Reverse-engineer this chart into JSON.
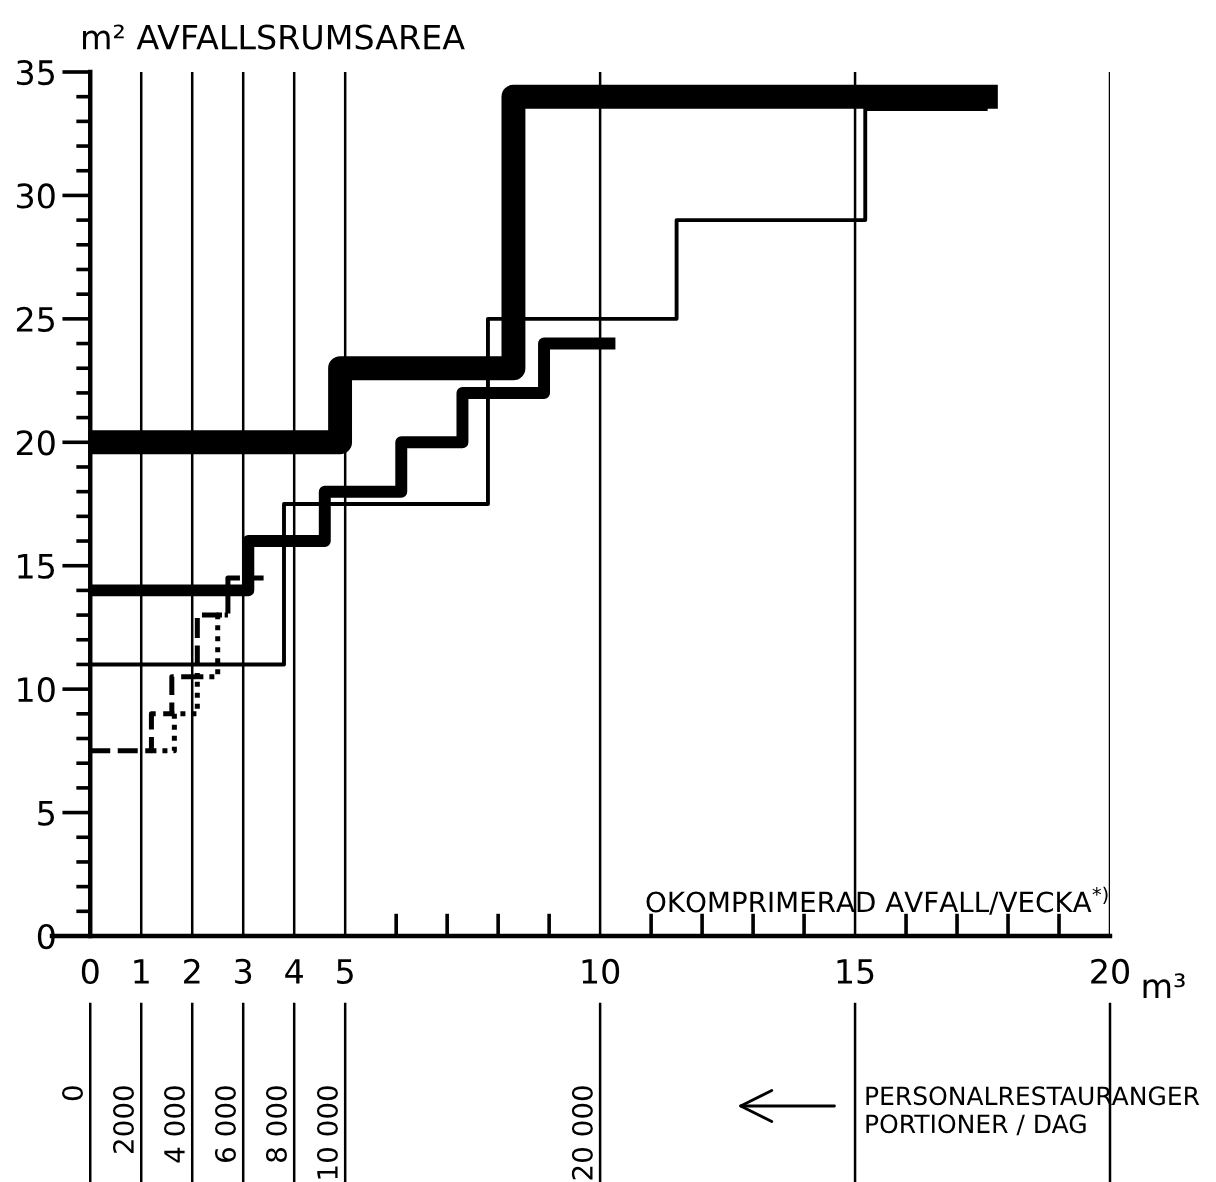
{
  "chart_data": {
    "type": "step",
    "ylabel": "m² AVFALLSRUMSAREA",
    "xlabel": "OKOMPRIMERAD AVFALL/VECKA$^{*)}$",
    "x2label": "PERSONALRESTAURANGER\nPORTIONER / DAG",
    "annotations": [
      "m³"
    ],
    "xlim": [
      -0.75,
      20
    ],
    "ylim": [
      0,
      35
    ],
    "xticks": [
      0,
      1,
      2,
      3,
      4,
      5,
      {
        "value": 6,
        "label": null
      },
      {
        "value": 7,
        "label": null
      },
      {
        "value": 8,
        "label": null
      },
      {
        "value": 9,
        "label": null
      },
      10,
      {
        "value": 11,
        "label": null
      },
      {
        "value": 12,
        "label": null
      },
      {
        "value": 13,
        "label": null
      },
      {
        "value": 14,
        "label": null
      },
      15,
      {
        "value": 16,
        "label": null
      },
      {
        "value": 17,
        "label": null
      },
      {
        "value": 18,
        "label": null
      },
      {
        "value": 19,
        "label": null
      },
      20
    ],
    "yticks": [
      0,
      {
        "value": 1,
        "label": null
      },
      {
        "value": 2,
        "label": null
      },
      {
        "value": 3,
        "label": null
      },
      {
        "value": 4,
        "label": null
      },
      5,
      {
        "value": 6,
        "label": null
      },
      {
        "value": 7,
        "label": null
      },
      {
        "value": 8,
        "label": null
      },
      {
        "value": 9,
        "label": null
      },
      10,
      {
        "value": 11,
        "label": null
      },
      {
        "value": 12,
        "label": null
      },
      {
        "value": 13,
        "label": null
      },
      {
        "value": 14,
        "label": null
      },
      15,
      {
        "value": 16,
        "label": null
      },
      {
        "value": 17,
        "label": null
      },
      {
        "value": 18,
        "label": null
      },
      {
        "value": 19,
        "label": null
      },
      20,
      {
        "value": 21,
        "label": null
      },
      {
        "value": 22,
        "label": null
      },
      {
        "value": 23,
        "label": null
      },
      {
        "value": 24,
        "label": null
      },
      25,
      {
        "value": 26,
        "label": null
      },
      {
        "value": 27,
        "label": null
      },
      {
        "value": 28,
        "label": null
      },
      {
        "value": 29,
        "label": null
      },
      30,
      {
        "value": 31,
        "label": null
      },
      {
        "value": 32,
        "label": null
      },
      {
        "value": 33,
        "label": null
      },
      {
        "value": 34,
        "label": null
      },
      35
    ],
    "x2lim": [
      -900,
      40600
    ],
    "x2ticks": [
      0,
      2000,
      {
        "value": 4000,
        "label": "4 000"
      },
      {
        "value": 6000,
        "label": "6 000"
      },
      {
        "value": 8000,
        "label": "8 000"
      },
      {
        "value": 10000,
        "label": "10 000"
      },
      {
        "value": 20000,
        "label": "20 000"
      }
    ],
    "grid": "x",
    "series": [
      {
        "color": "#000000",
        "line_style": "solid",
        "x": [
          0,
          4.9,
          8.3,
          17.8
        ],
        "values": [
          20,
          23,
          34,
          34
        ]
      },
      {
        "color": "#000000",
        "line_style": "solid",
        "x": [
          0,
          3.1,
          4.6,
          6.1,
          7.3,
          8.9,
          10.3
        ],
        "values": [
          14,
          16,
          18,
          20,
          22,
          24,
          24
        ]
      },
      {
        "color": "#000000",
        "line_style": "solid",
        "x": [
          0,
          3.8,
          7.8,
          11.5,
          15.2,
          17.6
        ],
        "values": [
          11,
          17.5,
          25,
          29,
          33.5,
          33.5
        ]
      },
      {
        "color": "#000000",
        "line_style": "dashed",
        "x": [
          0,
          1.2,
          1.6,
          2.1,
          2.7,
          3.4
        ],
        "values": [
          7.5,
          9,
          10.5,
          13,
          14.5,
          14.5
        ]
      },
      {
        "color": "#000000",
        "line_style": "dotted",
        "x": [
          1.2,
          1.65,
          2.1,
          2.5,
          2.7
        ],
        "values": [
          7.5,
          9,
          10.5,
          13,
          13
        ]
      }
    ]
  }
}
